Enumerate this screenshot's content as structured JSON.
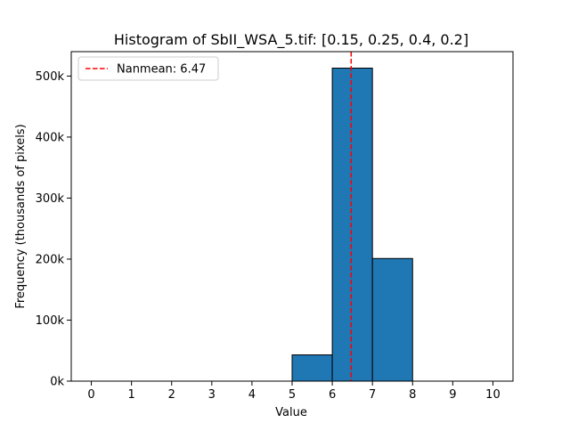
{
  "chart_data": {
    "type": "bar",
    "title": "Histogram of SbII_WSA_5.tif: [0.15, 0.25, 0.4, 0.2]",
    "xlabel": "Value",
    "ylabel": "Frequency (thousands of pixels)",
    "xlim": [
      -0.5,
      10.5
    ],
    "ylim": [
      0,
      540000
    ],
    "x_ticks": [
      0,
      1,
      2,
      3,
      4,
      5,
      6,
      7,
      8,
      9,
      10
    ],
    "x_tick_labels": [
      "0",
      "1",
      "2",
      "3",
      "4",
      "5",
      "6",
      "7",
      "8",
      "9",
      "10"
    ],
    "y_ticks": [
      0,
      100000,
      200000,
      300000,
      400000,
      500000
    ],
    "y_tick_labels": [
      "0k",
      "100k",
      "200k",
      "300k",
      "400k",
      "500k"
    ],
    "bins": [
      {
        "start": 0,
        "end": 1,
        "value": 0
      },
      {
        "start": 1,
        "end": 2,
        "value": 0
      },
      {
        "start": 2,
        "end": 3,
        "value": 0
      },
      {
        "start": 3,
        "end": 4,
        "value": 0
      },
      {
        "start": 4,
        "end": 5,
        "value": 0
      },
      {
        "start": 5,
        "end": 6,
        "value": 43000
      },
      {
        "start": 6,
        "end": 7,
        "value": 513000
      },
      {
        "start": 7,
        "end": 8,
        "value": 201000
      },
      {
        "start": 8,
        "end": 9,
        "value": 0
      },
      {
        "start": 9,
        "end": 10,
        "value": 0
      }
    ],
    "mean_line": {
      "x": 6.47,
      "label": "Nanmean: 6.47",
      "color": "#ff0000",
      "style": "dashed"
    },
    "bar_color": "#1f77b4",
    "bar_edge_color": "#000000",
    "grid": false,
    "legend_position": "top-left"
  }
}
